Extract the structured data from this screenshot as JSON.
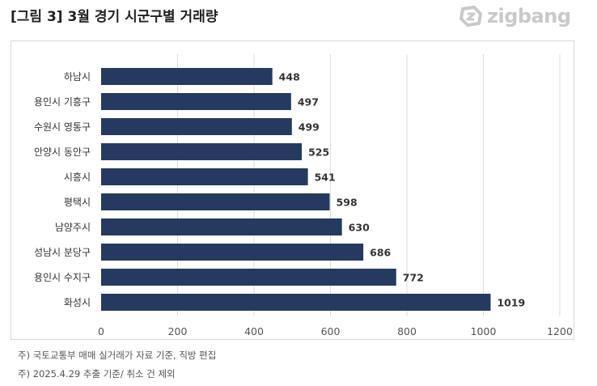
{
  "title": "[그림 3] 3월 경기 시군구별 거래량",
  "brand": {
    "name": "zigbang",
    "icon": "zigbang-logo-icon",
    "color": "#c9c9c9"
  },
  "footnotes": [
    "주) 국토교통부 매매 실거래가 자료 기준, 직방 편집",
    "주) 2025.4.29 추출 기준/ 취소 건 제외"
  ],
  "colors": {
    "bar": "#253a5e",
    "grid": "#dcdcdc",
    "label": "#333333"
  },
  "chart_data": {
    "type": "bar",
    "orientation": "horizontal",
    "title": "",
    "xlabel": "",
    "ylabel": "",
    "categories": [
      "하남시",
      "용인시 기흥구",
      "수원시 영통구",
      "안양시 동안구",
      "시흥시",
      "평택시",
      "남양주시",
      "성남시 분당구",
      "용인시 수지구",
      "화성시"
    ],
    "values": [
      448,
      497,
      499,
      525,
      541,
      598,
      630,
      686,
      772,
      1019
    ],
    "xlim": [
      0,
      1200
    ],
    "xticks": [
      0,
      200,
      400,
      600,
      800,
      1000,
      1200
    ],
    "grid": "vertical",
    "data_labels": true
  }
}
